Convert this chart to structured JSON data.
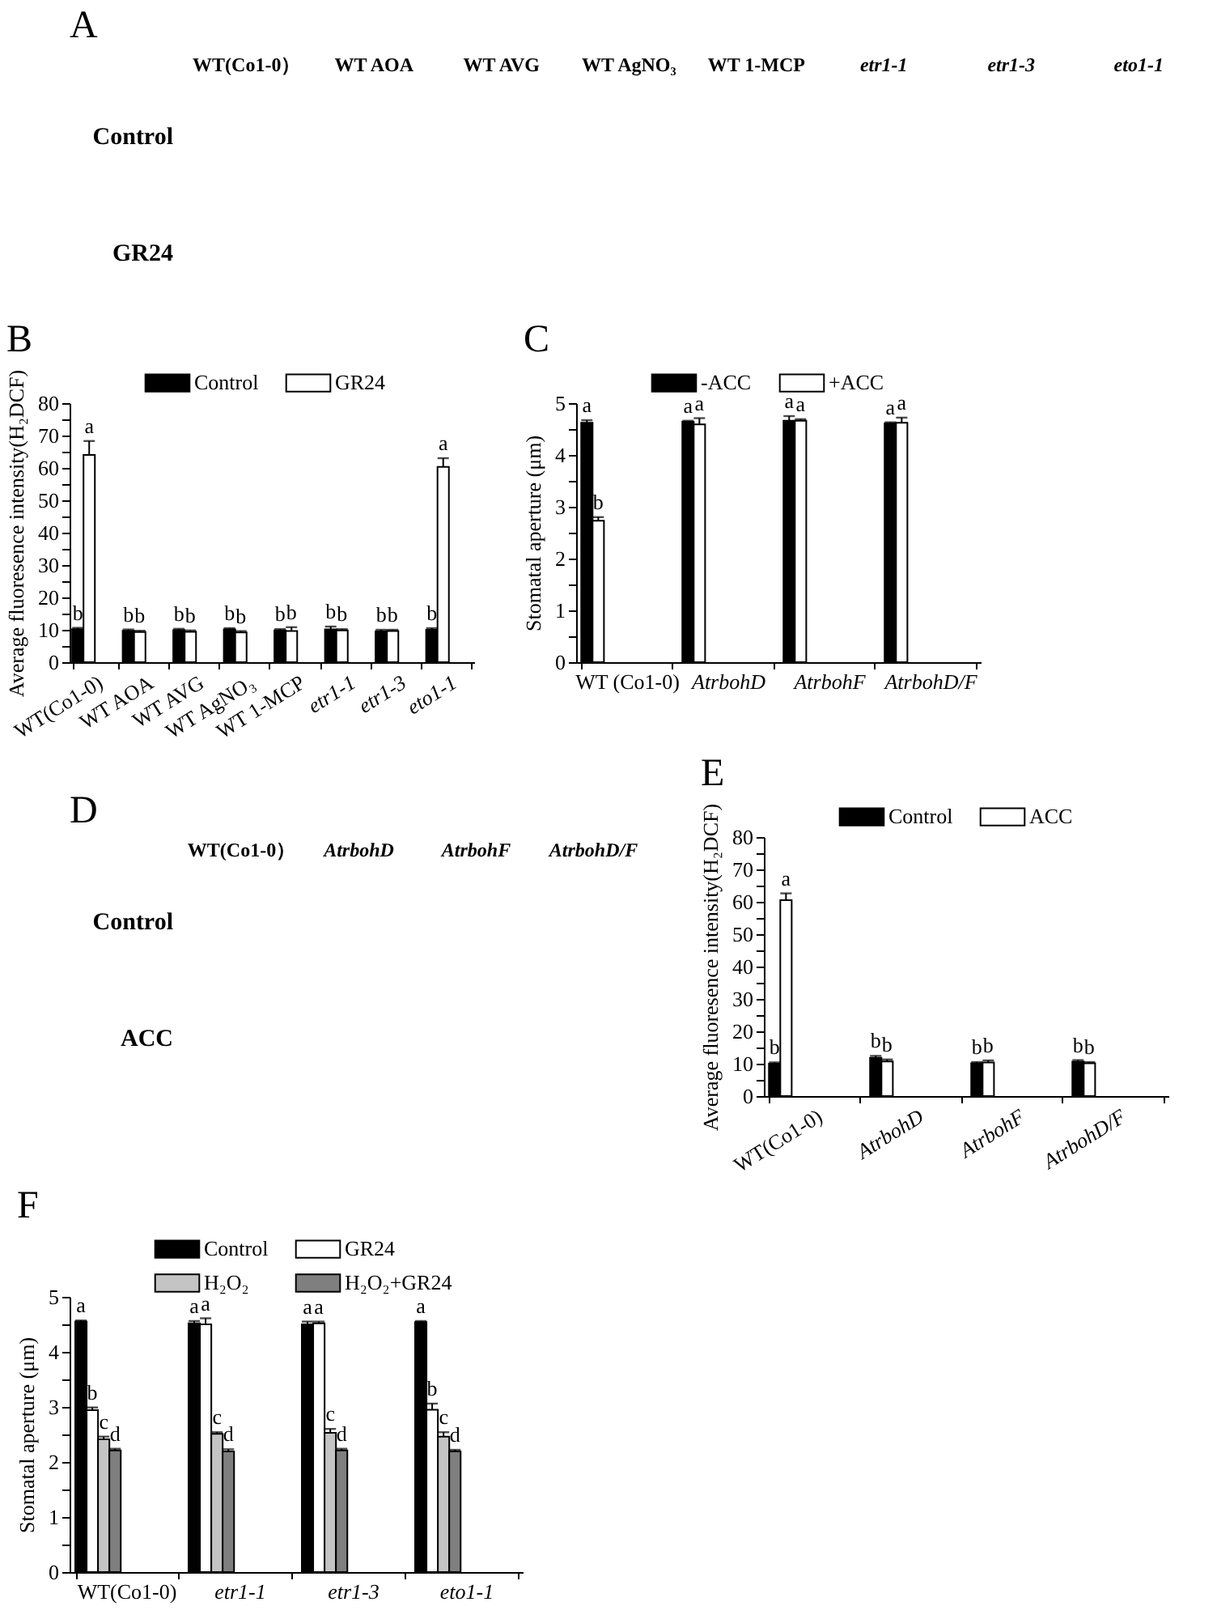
{
  "chart_data": [
    {
      "type": "other",
      "title": "A",
      "categories": [
        "WT(Co1-0）",
        "WT AOA",
        "WT AVG",
        "WT AgNO₃",
        "WT 1-MCP",
        "etr1-1",
        "etr1-3",
        "eto1-1"
      ],
      "y_categories": [
        "Control",
        "GR24"
      ]
    },
    {
      "type": "bar",
      "title": "B",
      "ylabel": "Average fluoresence intensity(H₂DCF)",
      "categories": [
        "WT(Co1-0)",
        "WT AOA",
        "WT AVG",
        "WT AgNO₃",
        "WT 1-MCP",
        "etr1-1",
        "etr1-3",
        "eto1-1"
      ],
      "series": [
        {
          "name": "Control",
          "color": "#000000",
          "values": [
            10.2,
            9.7,
            9.9,
            10.1,
            9.8,
            10.1,
            9.5,
            10
          ],
          "errors": [
            [
              10.2,
              10.6
            ],
            [
              9.7,
              10.1
            ],
            [
              9.9,
              10.3
            ],
            [
              10.1,
              10.5
            ],
            [
              9.8,
              10.2
            ],
            [
              10.1,
              11
            ],
            [
              9.5,
              10
            ],
            [
              10,
              10.5
            ]
          ],
          "value_labels": [
            "b",
            "b",
            "b",
            "b",
            "b",
            "b",
            "b",
            "b"
          ]
        },
        {
          "name": "GR24",
          "color": "#ffffff",
          "values": [
            64,
            9.3,
            9.4,
            9.2,
            9.6,
            9.8,
            9.6,
            60.3
          ],
          "errors": [
            [
              64,
              68.3
            ],
            [
              9.3,
              9.7
            ],
            [
              9.4,
              9.8
            ],
            [
              9.2,
              9.6
            ],
            [
              9.6,
              10.8
            ],
            [
              9.8,
              10.2
            ],
            [
              9.6,
              10
            ],
            [
              60.3,
              63
            ]
          ],
          "value_labels": [
            "a",
            "b",
            "b",
            "b",
            "b",
            "b",
            "b",
            "a"
          ]
        }
      ],
      "ylim": [
        0,
        80
      ],
      "yticks": [
        0,
        {
          "value": 5,
          "label": null
        },
        10,
        {
          "value": 15,
          "label": null
        },
        20,
        {
          "value": 25,
          "label": null
        },
        30,
        {
          "value": 35,
          "label": null
        },
        40,
        {
          "value": 45,
          "label": null
        },
        50,
        {
          "value": 55,
          "label": null
        },
        60,
        {
          "value": 65,
          "label": null
        },
        70,
        {
          "value": 75,
          "label": null
        },
        80
      ],
      "legend": "top"
    },
    {
      "type": "bar",
      "title": "C",
      "ylabel": "Stomatal aperture (μm)",
      "categories": [
        "WT (Co1-0)",
        "AtrbohD",
        "AtrbohF",
        "AtrbohD/F"
      ],
      "series": [
        {
          "name": "-ACC",
          "color": "#000000",
          "values": [
            4.62,
            4.64,
            4.66,
            4.61
          ],
          "errors": [
            [
              4.62,
              4.67
            ],
            [
              4.64,
              4.66
            ],
            [
              4.66,
              4.75
            ],
            [
              4.61,
              4.63
            ]
          ],
          "value_labels": [
            "a",
            "a",
            "a",
            "a"
          ]
        },
        {
          "name": "+ACC",
          "color": "#ffffff",
          "values": [
            2.73,
            4.59,
            4.66,
            4.62
          ],
          "errors": [
            [
              2.73,
              2.8
            ],
            [
              4.59,
              4.71
            ],
            [
              4.66,
              4.69
            ],
            [
              4.62,
              4.72
            ]
          ],
          "value_labels": [
            "b",
            "a",
            "a",
            "a"
          ]
        }
      ],
      "ylim": [
        0,
        5
      ],
      "yticks": [
        0,
        {
          "value": 0.5,
          "label": null
        },
        1,
        {
          "value": 1.5,
          "label": null
        },
        2,
        {
          "value": 2.5,
          "label": null
        },
        3,
        {
          "value": 3.5,
          "label": null
        },
        4,
        {
          "value": 4.5,
          "label": null
        },
        5
      ],
      "legend": "top"
    },
    {
      "type": "other",
      "title": "D",
      "categories": [
        "WT(Co1-0）",
        "AtrbohD",
        "AtrbohF",
        "AtrbohD/F"
      ],
      "y_categories": [
        "Control",
        "ACC"
      ]
    },
    {
      "type": "bar",
      "title": "E",
      "ylabel": "Average fluoresence intensity(H₂DCF)",
      "categories": [
        "WT(Co1-0)",
        "AtrbohD",
        "AtrbohF",
        "AtrbohD/F"
      ],
      "series": [
        {
          "name": "Control",
          "color": "#000000",
          "values": [
            10,
            11.8,
            10.1,
            10.6
          ],
          "errors": [
            [
              10,
              10.4
            ],
            [
              11.8,
              12.4
            ],
            [
              10.1,
              10.5
            ],
            [
              10.6,
              11.1
            ]
          ],
          "value_labels": [
            "b",
            "b",
            "b",
            "b"
          ]
        },
        {
          "name": "ACC",
          "color": "#ffffff",
          "values": [
            60.5,
            10.7,
            10.4,
            10.1
          ],
          "errors": [
            [
              60.5,
              62.6
            ],
            [
              10.7,
              11.3
            ],
            [
              10.4,
              11
            ],
            [
              10.1,
              10.5
            ]
          ],
          "value_labels": [
            "a",
            "b",
            "b",
            "b"
          ]
        }
      ],
      "ylim": [
        0,
        80
      ],
      "yticks": [
        0,
        {
          "value": 5,
          "label": null
        },
        10,
        {
          "value": 15,
          "label": null
        },
        20,
        {
          "value": 25,
          "label": null
        },
        30,
        {
          "value": 35,
          "label": null
        },
        40,
        {
          "value": 45,
          "label": null
        },
        50,
        {
          "value": 55,
          "label": null
        },
        60,
        {
          "value": 65,
          "label": null
        },
        70,
        {
          "value": 75,
          "label": null
        },
        80
      ],
      "legend": "top"
    },
    {
      "type": "bar",
      "title": "F",
      "ylabel": "Stomatal aperture (μm)",
      "categories": [
        "WT(Co1-0)",
        "etr1-1",
        "etr1-3",
        "eto1-1"
      ],
      "series": [
        {
          "name": "Control",
          "color": "#000000",
          "values": [
            4.55,
            4.52,
            4.5,
            4.54
          ],
          "errors": [
            [
              4.55,
              4.57
            ],
            [
              4.52,
              4.56
            ],
            [
              4.5,
              4.55
            ],
            [
              4.54,
              4.56
            ]
          ],
          "value_labels": [
            "a",
            "a",
            "a",
            "a"
          ]
        },
        {
          "name": "GR24",
          "color": "#ffffff",
          "values": [
            2.94,
            4.5,
            4.52,
            2.95
          ],
          "errors": [
            [
              2.94,
              2.99
            ],
            [
              4.5,
              4.61
            ],
            [
              4.52,
              4.55
            ],
            [
              2.95,
              3.06
            ]
          ],
          "value_labels": [
            "b",
            "a",
            "a",
            "b"
          ]
        },
        {
          "name": "H₂O₂",
          "color": "#c4c4c4",
          "values": [
            2.41,
            2.51,
            2.53,
            2.46
          ],
          "errors": [
            [
              2.41,
              2.46
            ],
            [
              2.51,
              2.54
            ],
            [
              2.53,
              2.6
            ],
            [
              2.46,
              2.54
            ]
          ],
          "value_labels": [
            "c",
            "c",
            "c",
            "c"
          ]
        },
        {
          "name": "H₂O₂+GR24",
          "color": "#7f7f7f",
          "values": [
            2.21,
            2.19,
            2.21,
            2.19
          ],
          "errors": [
            [
              2.21,
              2.24
            ],
            [
              2.19,
              2.23
            ],
            [
              2.21,
              2.24
            ],
            [
              2.19,
              2.22
            ]
          ],
          "value_labels": [
            "d",
            "d",
            "d",
            "d"
          ]
        }
      ],
      "ylim": [
        0,
        5
      ],
      "yticks": [
        0,
        {
          "value": 0.5,
          "label": null
        },
        1,
        {
          "value": 1.5,
          "label": null
        },
        2,
        {
          "value": 2.5,
          "label": null
        },
        3,
        {
          "value": 3.5,
          "label": null
        },
        4,
        {
          "value": 4.5,
          "label": null
        },
        5
      ],
      "legend": "top"
    }
  ]
}
